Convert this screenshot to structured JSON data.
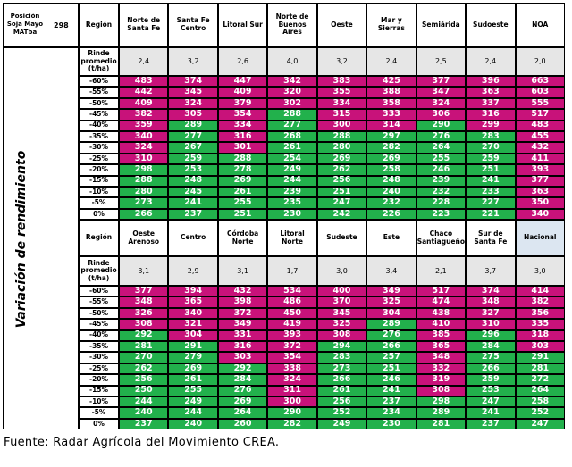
{
  "corner": {
    "label": "Posición Soja Mayo MATba",
    "price": 298
  },
  "side_label": "Variación de rendimiento",
  "sections": [
    {
      "header_label": "Región",
      "rinde_label": "Rinde promedio (t/ha)",
      "regions": [
        "Norte de Santa Fe",
        "Santa Fe Centro",
        "Litoral Sur",
        "Norte de Buenos Aires",
        "Oeste",
        "Mar y Sierras",
        "Semiárida",
        "Sudoeste",
        "NOA"
      ],
      "rinde": [
        "2,4",
        "3,2",
        "2,6",
        "4,0",
        "3,2",
        "2,4",
        "2,5",
        "2,4",
        "2,0"
      ],
      "rows": [
        {
          "label": "-60%",
          "values": [
            483,
            374,
            447,
            342,
            383,
            425,
            377,
            396,
            663
          ]
        },
        {
          "label": "-55%",
          "values": [
            442,
            345,
            409,
            320,
            355,
            388,
            347,
            363,
            603
          ]
        },
        {
          "label": "-50%",
          "values": [
            409,
            324,
            379,
            302,
            334,
            358,
            324,
            337,
            555
          ]
        },
        {
          "label": "-45%",
          "values": [
            382,
            305,
            354,
            288,
            315,
            333,
            306,
            316,
            517
          ]
        },
        {
          "label": "-40%",
          "values": [
            359,
            289,
            334,
            277,
            300,
            314,
            290,
            299,
            483
          ]
        },
        {
          "label": "-35%",
          "values": [
            340,
            277,
            316,
            268,
            288,
            297,
            276,
            283,
            455
          ]
        },
        {
          "label": "-30%",
          "values": [
            324,
            267,
            301,
            261,
            280,
            282,
            264,
            270,
            432
          ]
        },
        {
          "label": "-25%",
          "values": [
            310,
            259,
            288,
            254,
            269,
            269,
            255,
            259,
            411
          ]
        },
        {
          "label": "-20%",
          "values": [
            298,
            253,
            278,
            249,
            262,
            258,
            246,
            251,
            393
          ]
        },
        {
          "label": "-15%",
          "values": [
            288,
            248,
            269,
            244,
            256,
            248,
            239,
            241,
            377
          ]
        },
        {
          "label": "-10%",
          "values": [
            280,
            245,
            261,
            239,
            251,
            240,
            232,
            233,
            363
          ]
        },
        {
          "label": "-5%",
          "values": [
            273,
            241,
            255,
            235,
            247,
            232,
            228,
            227,
            350
          ]
        },
        {
          "label": "0%",
          "values": [
            266,
            237,
            251,
            230,
            242,
            226,
            223,
            221,
            340
          ]
        }
      ]
    },
    {
      "header_label": "Región",
      "rinde_label": "Rinde promedio (t/ha)",
      "regions": [
        "Oeste Arenoso",
        "Centro",
        "Córdoba Norte",
        "Litoral Norte",
        "Sudeste",
        "Este",
        "Chaco Santiagueño",
        "Sur de Santa Fe",
        "Nacional"
      ],
      "rinde": [
        "3,1",
        "2,9",
        "3,1",
        "1,7",
        "3,0",
        "3,4",
        "2,1",
        "3,7",
        "3,0"
      ],
      "rows": [
        {
          "label": "-60%",
          "values": [
            377,
            394,
            432,
            534,
            400,
            349,
            517,
            374,
            414
          ]
        },
        {
          "label": "-55%",
          "values": [
            348,
            365,
            398,
            486,
            370,
            325,
            474,
            348,
            382
          ]
        },
        {
          "label": "-50%",
          "values": [
            326,
            340,
            372,
            450,
            345,
            304,
            438,
            327,
            356
          ]
        },
        {
          "label": "-45%",
          "values": [
            308,
            321,
            349,
            419,
            325,
            289,
            410,
            310,
            335
          ]
        },
        {
          "label": "-40%",
          "values": [
            292,
            304,
            331,
            393,
            308,
            276,
            385,
            296,
            318
          ]
        },
        {
          "label": "-35%",
          "values": [
            281,
            291,
            316,
            372,
            294,
            266,
            365,
            284,
            303
          ]
        },
        {
          "label": "-30%",
          "values": [
            270,
            279,
            303,
            354,
            283,
            257,
            348,
            275,
            291
          ]
        },
        {
          "label": "-25%",
          "values": [
            262,
            269,
            292,
            338,
            273,
            251,
            332,
            266,
            281
          ]
        },
        {
          "label": "-20%",
          "values": [
            256,
            261,
            284,
            324,
            266,
            246,
            319,
            259,
            272
          ]
        },
        {
          "label": "-15%",
          "values": [
            250,
            255,
            276,
            311,
            261,
            241,
            308,
            253,
            264
          ]
        },
        {
          "label": "-10%",
          "values": [
            244,
            249,
            269,
            300,
            256,
            237,
            298,
            247,
            258
          ]
        },
        {
          "label": "-5%",
          "values": [
            240,
            244,
            264,
            290,
            252,
            234,
            289,
            241,
            252
          ]
        },
        {
          "label": "0%",
          "values": [
            237,
            240,
            260,
            282,
            249,
            230,
            281,
            237,
            247
          ]
        }
      ]
    }
  ],
  "footer": "Fuente: Radar Agrícola del Movimiento CREA."
}
